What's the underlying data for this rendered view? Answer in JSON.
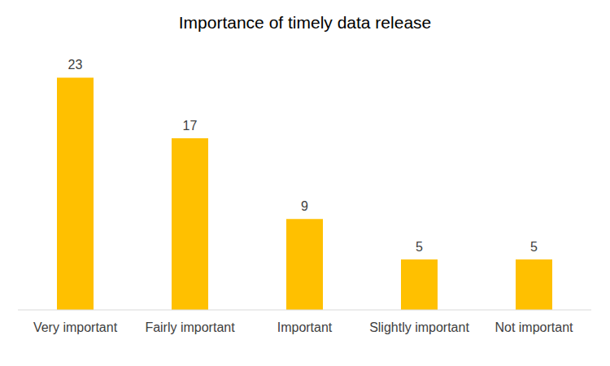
{
  "chart_data": {
    "type": "bar",
    "title": "Importance of timely data release",
    "categories": [
      "Very important",
      "Fairly important",
      "Important",
      "Slightly important",
      "Not important"
    ],
    "values": [
      23,
      17,
      9,
      5,
      5
    ],
    "color": "#ffc000",
    "ylim": [
      0,
      24
    ],
    "grid": false,
    "data_labels": true,
    "tick_labels": "x"
  }
}
